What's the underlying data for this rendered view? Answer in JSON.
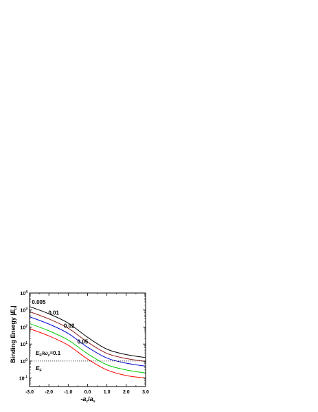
{
  "chart_data": {
    "type": "line",
    "xlabel": "-a_z/a_s",
    "ylabel": "Binding Energy |E_b|",
    "xlim": [
      -3.0,
      3.0
    ],
    "ylim_log10": [
      -1.5,
      4.0
    ],
    "y_scale": "log",
    "x_ticks": [
      "-3.0",
      "-2.0",
      "-1.0",
      "0.0",
      "1.0",
      "2.0",
      "3.0"
    ],
    "y_ticks": [
      {
        "base": "10",
        "exp": "4",
        "value": 10000
      },
      {
        "base": "10",
        "exp": "3",
        "value": 1000
      },
      {
        "base": "10",
        "exp": "2",
        "value": 100
      },
      {
        "base": "10",
        "exp": "1",
        "value": 10
      },
      {
        "base": "10",
        "exp": "0",
        "value": 1
      },
      {
        "base": "10",
        "exp": "-1",
        "value": 0.1
      }
    ],
    "annotations": {
      "ef_ratio_label": "E",
      "ef_ratio_sub": "F",
      "ef_ratio_mid": "/ω",
      "ef_ratio_sub2": "z",
      "ef_ratio_value": "=0.1",
      "ef_label": "E",
      "ef_sub": "F"
    },
    "series": [
      {
        "name": "0.005",
        "color": "#000000",
        "x": [
          -3.0,
          -2.0,
          -1.0,
          0.0,
          1.0,
          2.0,
          3.0
        ],
        "y": [
          1600,
          600,
          170,
          25,
          5,
          2.4,
          1.6
        ]
      },
      {
        "name": "0.01",
        "color": "#8B1A1A",
        "x": [
          -3.0,
          -2.0,
          -1.0,
          0.0,
          1.0,
          2.0,
          3.0
        ],
        "y": [
          800,
          300,
          85,
          13,
          2.8,
          1.4,
          0.95
        ]
      },
      {
        "name": "0.02",
        "color": "#0000CC",
        "x": [
          -3.0,
          -2.0,
          -1.0,
          0.0,
          1.0,
          2.0,
          3.0
        ],
        "y": [
          400,
          150,
          42,
          6.5,
          1.5,
          0.75,
          0.5
        ]
      },
      {
        "name": "0.05",
        "color": "#00CC00",
        "x": [
          -3.0,
          -2.0,
          -1.0,
          0.0,
          1.0,
          2.0,
          3.0
        ],
        "y": [
          160,
          60,
          17,
          2.7,
          0.6,
          0.3,
          0.2
        ]
      },
      {
        "name": "",
        "color": "#FF0000",
        "x": [
          -3.0,
          -2.0,
          -1.0,
          0.0,
          1.0,
          2.0,
          3.0
        ],
        "y": [
          80,
          30,
          8.5,
          1.3,
          0.3,
          0.14,
          0.1
        ]
      }
    ],
    "reference_line": {
      "y": 1,
      "style": "dotted"
    }
  }
}
